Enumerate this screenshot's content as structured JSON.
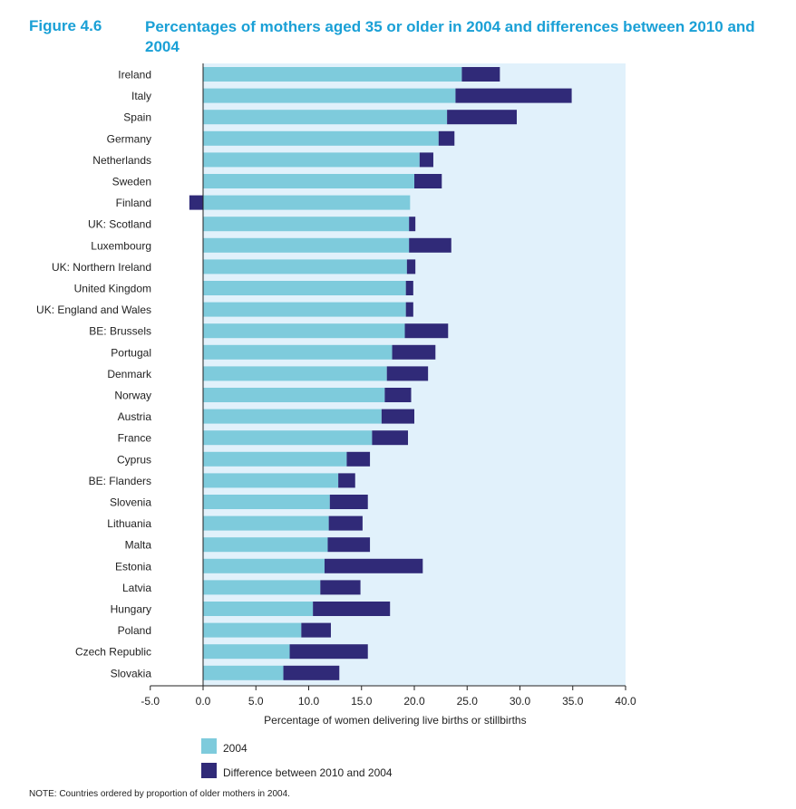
{
  "figure": {
    "label": "Figure 4.6",
    "title": "Percentages of mothers aged 35 or older in 2004 and differences between 2010 and 2004"
  },
  "note": "NOTE: Countries ordered by proportion of older mothers in 2004.",
  "colors": {
    "series_2004": "#7ecbdc",
    "series_diff": "#302a78",
    "plot_background": "#e1f1fb",
    "title": "#1aa0d6"
  },
  "chart_data": {
    "type": "bar",
    "orientation": "horizontal",
    "stacked": true,
    "title": "Percentages of mothers aged 35 or older in 2004 and differences between 2010 and 2004",
    "xlabel": "Percentage of women delivering live births or stillbirths",
    "ylabel": "",
    "xlim": [
      -5,
      40
    ],
    "xticks": [
      "-5.0",
      "0.0",
      "5.0",
      "10.0",
      "15.0",
      "20.0",
      "25.0",
      "30.0",
      "35.0",
      "40.0"
    ],
    "grid": false,
    "legend_position": "bottom-left",
    "categories": [
      "Ireland",
      "Italy",
      "Spain",
      "Germany",
      "Netherlands",
      "Sweden",
      "Finland",
      "UK: Scotland",
      "Luxembourg",
      "UK: Northern Ireland",
      "United Kingdom",
      "UK: England and Wales",
      "BE: Brussels",
      "Portugal",
      "Denmark",
      "Norway",
      "Austria",
      "France",
      "Cyprus",
      "BE: Flanders",
      "Slovenia",
      "Lithuania",
      "Malta",
      "Estonia",
      "Latvia",
      "Hungary",
      "Poland",
      "Czech Republic",
      "Slovakia"
    ],
    "series": [
      {
        "name": "2004",
        "values": [
          24.5,
          23.9,
          23.1,
          22.3,
          20.5,
          20.0,
          19.6,
          19.5,
          19.5,
          19.3,
          19.2,
          19.2,
          19.1,
          17.9,
          17.4,
          17.2,
          16.9,
          16.0,
          13.6,
          12.8,
          12.0,
          11.9,
          11.8,
          11.5,
          11.1,
          10.4,
          9.3,
          8.2,
          7.6
        ]
      },
      {
        "name": "Difference between 2010 and 2004",
        "values": [
          3.6,
          11.0,
          6.6,
          1.5,
          1.3,
          2.6,
          -1.3,
          0.6,
          4.0,
          0.8,
          0.7,
          0.7,
          4.1,
          4.1,
          3.9,
          2.5,
          3.1,
          3.4,
          2.2,
          1.6,
          3.6,
          3.2,
          4.0,
          9.3,
          3.8,
          7.3,
          2.8,
          7.4,
          5.3
        ]
      }
    ]
  }
}
